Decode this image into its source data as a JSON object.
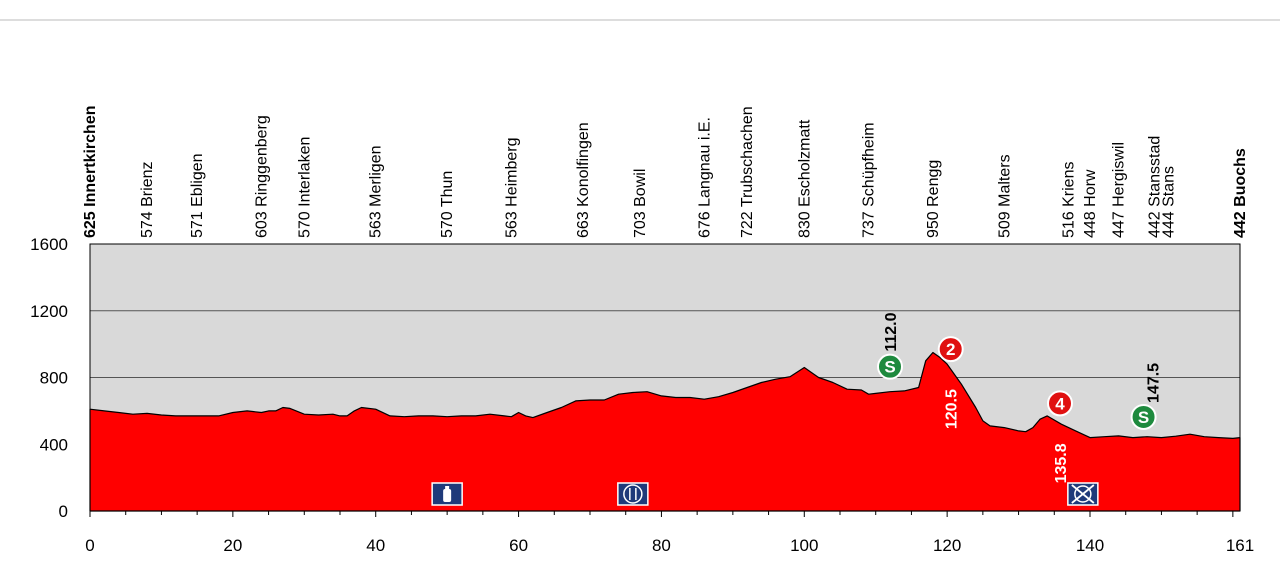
{
  "chart_data": {
    "type": "area",
    "x_ticks": [
      0,
      20,
      40,
      60,
      80,
      100,
      120,
      140,
      161
    ],
    "y_ticks": [
      0,
      400,
      800,
      1200,
      1600
    ],
    "xlim": [
      0,
      161
    ],
    "ylim": [
      0,
      1600
    ],
    "grid": "horizontal",
    "colors": {
      "fill": "#ff0000",
      "plot_bg": "#d9d9d9",
      "sprint": "#1e8a3e",
      "kom": "#e01010",
      "icon_bg": "#1f3a7a"
    },
    "profile": {
      "x": [
        0,
        2,
        4,
        6,
        8,
        10,
        12,
        14,
        16,
        18,
        20,
        22,
        24,
        25,
        26,
        27,
        28,
        30,
        32,
        34,
        35,
        36,
        37,
        38,
        40,
        42,
        44,
        46,
        48,
        50,
        52,
        54,
        56,
        58,
        59,
        60,
        61,
        62,
        64,
        66,
        68,
        70,
        72,
        74,
        76,
        78,
        80,
        82,
        84,
        86,
        88,
        90,
        92,
        94,
        96,
        98,
        100,
        101,
        102,
        104,
        106,
        108,
        109,
        110,
        112,
        114,
        116,
        117,
        118,
        119,
        120,
        122,
        124,
        125,
        126,
        128,
        130,
        131,
        132,
        133,
        134,
        136,
        138,
        140,
        142,
        144,
        146,
        148,
        150,
        152,
        154,
        156,
        158,
        160,
        161
      ],
      "y": [
        610,
        600,
        590,
        580,
        585,
        575,
        570,
        570,
        570,
        570,
        590,
        600,
        590,
        600,
        600,
        620,
        615,
        580,
        575,
        580,
        570,
        570,
        600,
        620,
        610,
        570,
        565,
        570,
        570,
        565,
        570,
        570,
        580,
        570,
        565,
        590,
        570,
        560,
        590,
        620,
        660,
        665,
        665,
        700,
        710,
        715,
        690,
        680,
        680,
        670,
        685,
        710,
        740,
        770,
        790,
        805,
        860,
        830,
        800,
        770,
        730,
        725,
        700,
        705,
        715,
        720,
        740,
        900,
        950,
        920,
        880,
        760,
        620,
        540,
        510,
        500,
        480,
        475,
        500,
        550,
        570,
        520,
        480,
        440,
        445,
        450,
        440,
        445,
        440,
        448,
        460,
        445,
        440,
        435,
        440
      ]
    },
    "places": [
      {
        "km": 0,
        "label": "625 Innertkirchen",
        "bold": true
      },
      {
        "km": 8,
        "label": "574 Brienz",
        "bold": false
      },
      {
        "km": 15,
        "label": "571 Ebligen",
        "bold": false
      },
      {
        "km": 24,
        "label": "603 Ringgenberg",
        "bold": false
      },
      {
        "km": 30,
        "label": "570 Interlaken",
        "bold": false
      },
      {
        "km": 40,
        "label": "563 Merligen",
        "bold": false
      },
      {
        "km": 50,
        "label": "570 Thun",
        "bold": false
      },
      {
        "km": 59,
        "label": "563 Heimberg",
        "bold": false
      },
      {
        "km": 69,
        "label": "663 Konolfingen",
        "bold": false
      },
      {
        "km": 77,
        "label": "703 Bowil",
        "bold": false
      },
      {
        "km": 86,
        "label": "676 Langnau i.E.",
        "bold": false
      },
      {
        "km": 92,
        "label": "722 Trubschachen",
        "bold": false
      },
      {
        "km": 100,
        "label": "830 Escholzmatt",
        "bold": false
      },
      {
        "km": 109,
        "label": "737 Schüpfheim",
        "bold": false
      },
      {
        "km": 118,
        "label": "950 Rengg",
        "bold": false
      },
      {
        "km": 128,
        "label": "509 Malters",
        "bold": false
      },
      {
        "km": 137,
        "label": "516 Kriens",
        "bold": false
      },
      {
        "km": 140,
        "label": "448 Horw",
        "bold": false
      },
      {
        "km": 144,
        "label": "447 Hergiswil",
        "bold": false
      },
      {
        "km": 149,
        "label": "442 Stansstad",
        "bold": false
      },
      {
        "km": 151,
        "label": "444 Stans",
        "bold": false
      },
      {
        "km": 161,
        "label": "442 Buochs",
        "bold": true
      }
    ],
    "markers": [
      {
        "type": "sprint",
        "symbol": "S",
        "km": 112.0,
        "label": "112.0",
        "label_side": "above"
      },
      {
        "type": "kom",
        "symbol": "2",
        "km": 120.5,
        "label": "120.5",
        "label_side": "below"
      },
      {
        "type": "kom",
        "symbol": "4",
        "km": 135.8,
        "label": "135.8",
        "label_side": "below"
      },
      {
        "type": "sprint",
        "symbol": "S",
        "km": 147.5,
        "label": "147.5",
        "label_side": "right"
      }
    ],
    "service_icons": [
      {
        "km": 50,
        "name": "bottle-icon"
      },
      {
        "km": 76,
        "name": "feed-zone-icon"
      },
      {
        "km": 139,
        "name": "no-feed-zone-icon"
      }
    ]
  }
}
